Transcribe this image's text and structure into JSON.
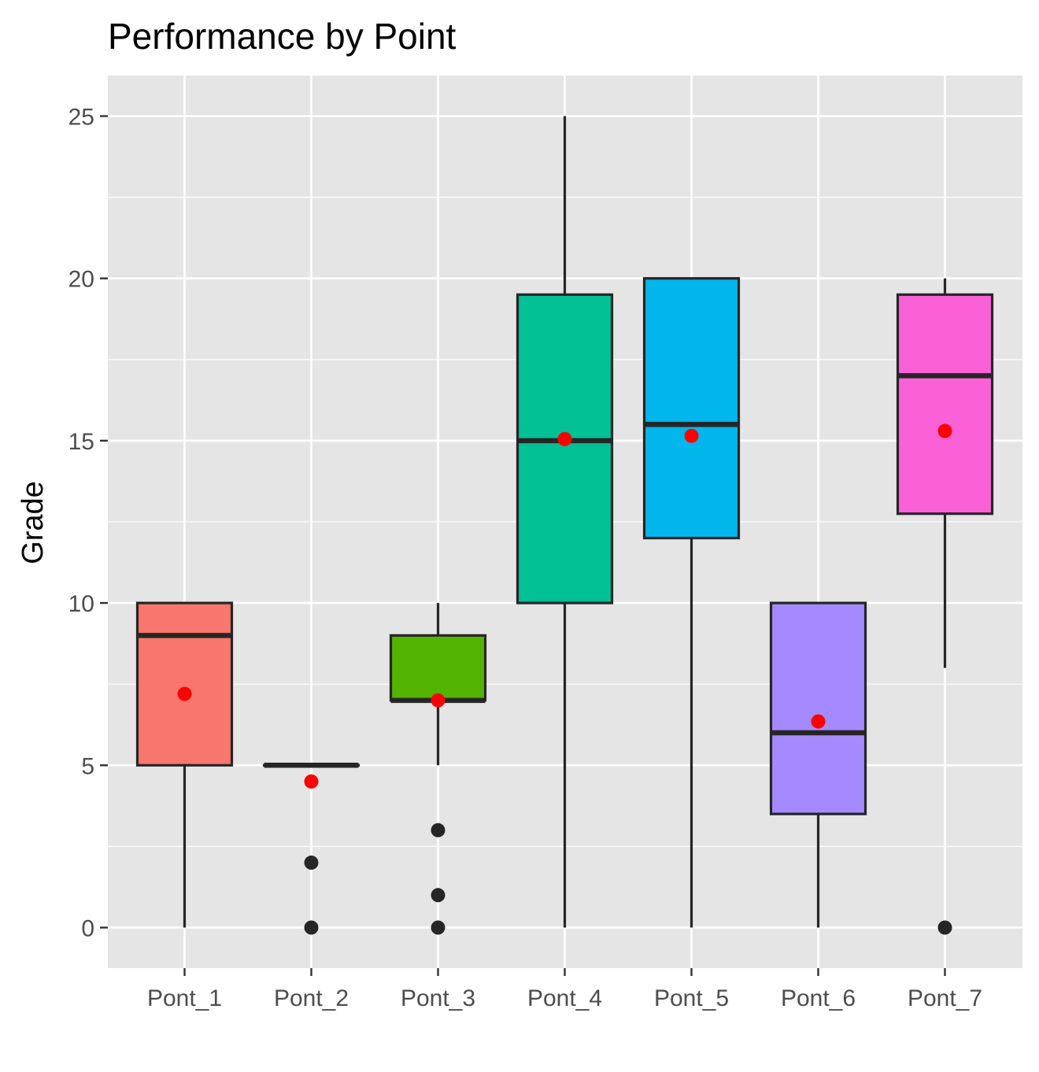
{
  "chart_data": {
    "type": "boxplot",
    "title": "Performance by Point",
    "xlabel": "",
    "ylabel": "Grade",
    "ylim": [
      -1.25,
      26.25
    ],
    "y_ticks": [
      0,
      5,
      10,
      15,
      20,
      25
    ],
    "grid": true,
    "legend": "none",
    "categories": [
      "Pont_1",
      "Pont_2",
      "Pont_3",
      "Pont_4",
      "Pont_5",
      "Pont_6",
      "Pont_7"
    ],
    "boxes": [
      {
        "category": "Pont_1",
        "whisker_low": 0,
        "q1": 5,
        "median": 9,
        "q3": 10,
        "whisker_high": 10,
        "mean": 7.2,
        "outliers": [],
        "color": "#F8766D"
      },
      {
        "category": "Pont_2",
        "whisker_low": 5,
        "q1": 5,
        "median": 5,
        "q3": 5,
        "whisker_high": 5,
        "mean": 4.5,
        "outliers": [
          0,
          2
        ],
        "color": "#C49A00"
      },
      {
        "category": "Pont_3",
        "whisker_low": 5,
        "q1": 7,
        "median": 7,
        "q3": 9,
        "whisker_high": 10,
        "mean": 7.0,
        "outliers": [
          0,
          1,
          3
        ],
        "color": "#53B400"
      },
      {
        "category": "Pont_4",
        "whisker_low": 0,
        "q1": 10,
        "median": 15,
        "q3": 19.5,
        "whisker_high": 25,
        "mean": 15.05,
        "outliers": [],
        "color": "#00C094"
      },
      {
        "category": "Pont_5",
        "whisker_low": 0,
        "q1": 12,
        "median": 15.5,
        "q3": 20,
        "whisker_high": 20,
        "mean": 15.15,
        "outliers": [],
        "color": "#00B6EB"
      },
      {
        "category": "Pont_6",
        "whisker_low": 0,
        "q1": 3.5,
        "median": 6,
        "q3": 10,
        "whisker_high": 10,
        "mean": 6.35,
        "outliers": [],
        "color": "#A58AFF"
      },
      {
        "category": "Pont_7",
        "whisker_low": 8,
        "q1": 12.75,
        "median": 17,
        "q3": 19.5,
        "whisker_high": 20,
        "mean": 15.3,
        "outliers": [
          0
        ],
        "color": "#FB61D7"
      }
    ],
    "colors": {
      "panel_background": "#E5E5E5",
      "grid": "#FFFFFF",
      "box_outline": "#262626",
      "mean_point": "#FF0000",
      "outlier_point": "#262626",
      "tick_text": "#4D4D4D"
    }
  }
}
